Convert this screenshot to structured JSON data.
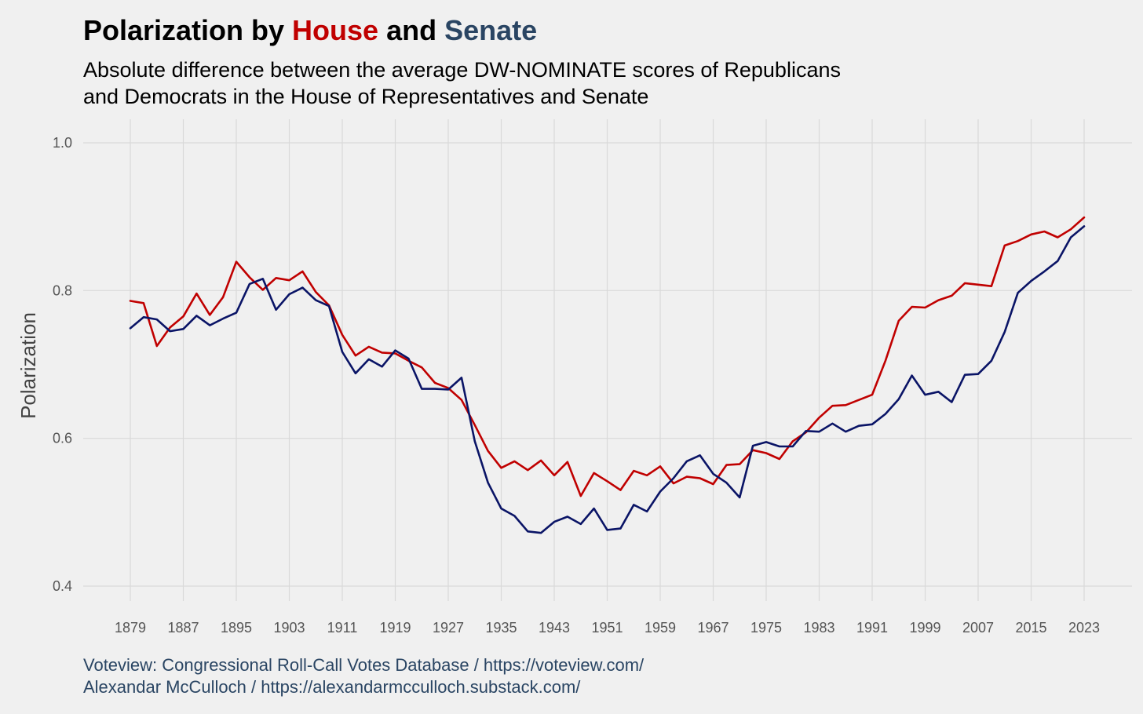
{
  "header": {
    "title_prefix": "Polarization by ",
    "title_house": "House",
    "title_and": " and ",
    "title_senate": "Senate",
    "subtitle_line1": "Absolute difference between the average DW-NOMINATE scores of Republicans",
    "subtitle_line2": "and Democrats in the House of Representatives and Senate"
  },
  "footer": {
    "source_line1": "Voteview: Congressional Roll-Call Votes Database / https://voteview.com/",
    "source_line2": "Alexandar McCulloch / https://alexandarmcculloch.substack.com/"
  },
  "colors": {
    "house": "#c00000",
    "senate": "#0a1466",
    "title_house": "#c00000",
    "title_senate": "#2a4563"
  },
  "chart_data": {
    "type": "line",
    "title": "Polarization by House and Senate",
    "xlabel": "",
    "ylabel": "Polarization",
    "xlim": [
      1879,
      2023
    ],
    "ylim": [
      0.4,
      1.0
    ],
    "x_ticks": [
      1879,
      1887,
      1895,
      1903,
      1911,
      1919,
      1927,
      1935,
      1943,
      1951,
      1959,
      1967,
      1975,
      1983,
      1991,
      1999,
      2007,
      2015,
      2023
    ],
    "y_ticks": [
      0.4,
      0.6,
      0.8,
      1.0
    ],
    "y_tick_labels": [
      "0.4",
      "0.6",
      "0.8",
      "1.0"
    ],
    "grid": true,
    "legend": "none (series identified by colored title words)",
    "x": [
      1879,
      1881,
      1883,
      1885,
      1887,
      1889,
      1891,
      1893,
      1895,
      1897,
      1899,
      1901,
      1903,
      1905,
      1907,
      1909,
      1911,
      1913,
      1915,
      1917,
      1919,
      1921,
      1923,
      1925,
      1927,
      1929,
      1931,
      1933,
      1935,
      1937,
      1939,
      1941,
      1943,
      1945,
      1947,
      1949,
      1951,
      1953,
      1955,
      1957,
      1959,
      1961,
      1963,
      1965,
      1967,
      1969,
      1971,
      1973,
      1975,
      1977,
      1979,
      1981,
      1983,
      1985,
      1987,
      1989,
      1991,
      1993,
      1995,
      1997,
      1999,
      2001,
      2003,
      2005,
      2007,
      2009,
      2011,
      2013,
      2015,
      2017,
      2019,
      2021,
      2023
    ],
    "series": [
      {
        "name": "House",
        "color": "#c00000",
        "values": [
          0.786,
          0.783,
          0.725,
          0.75,
          0.765,
          0.796,
          0.767,
          0.791,
          0.839,
          0.818,
          0.801,
          0.817,
          0.814,
          0.826,
          0.798,
          0.78,
          0.74,
          0.712,
          0.724,
          0.716,
          0.715,
          0.705,
          0.696,
          0.675,
          0.668,
          0.652,
          0.618,
          0.583,
          0.56,
          0.569,
          0.557,
          0.57,
          0.55,
          0.568,
          0.522,
          0.553,
          0.542,
          0.53,
          0.556,
          0.55,
          0.562,
          0.539,
          0.548,
          0.546,
          0.538,
          0.564,
          0.565,
          0.584,
          0.58,
          0.572,
          0.596,
          0.608,
          0.628,
          0.644,
          0.645,
          0.652,
          0.659,
          0.705,
          0.759,
          0.778,
          0.777,
          0.787,
          0.793,
          0.81,
          0.808,
          0.806,
          0.861,
          0.867,
          0.876,
          0.88,
          0.872,
          0.883,
          0.899
        ]
      },
      {
        "name": "Senate",
        "color": "#0a1466",
        "values": [
          0.749,
          0.764,
          0.761,
          0.745,
          0.748,
          0.766,
          0.753,
          0.762,
          0.77,
          0.809,
          0.816,
          0.774,
          0.795,
          0.804,
          0.787,
          0.779,
          0.717,
          0.688,
          0.707,
          0.697,
          0.719,
          0.708,
          0.667,
          0.667,
          0.666,
          0.682,
          0.596,
          0.54,
          0.505,
          0.495,
          0.474,
          0.472,
          0.487,
          0.494,
          0.484,
          0.505,
          0.476,
          0.478,
          0.51,
          0.501,
          0.528,
          0.546,
          0.569,
          0.577,
          0.552,
          0.54,
          0.52,
          0.59,
          0.595,
          0.589,
          0.589,
          0.61,
          0.609,
          0.62,
          0.609,
          0.617,
          0.619,
          0.633,
          0.653,
          0.685,
          0.659,
          0.663,
          0.649,
          0.686,
          0.687,
          0.705,
          0.744,
          0.797,
          0.813,
          0.826,
          0.84,
          0.872,
          0.887
        ]
      }
    ]
  }
}
